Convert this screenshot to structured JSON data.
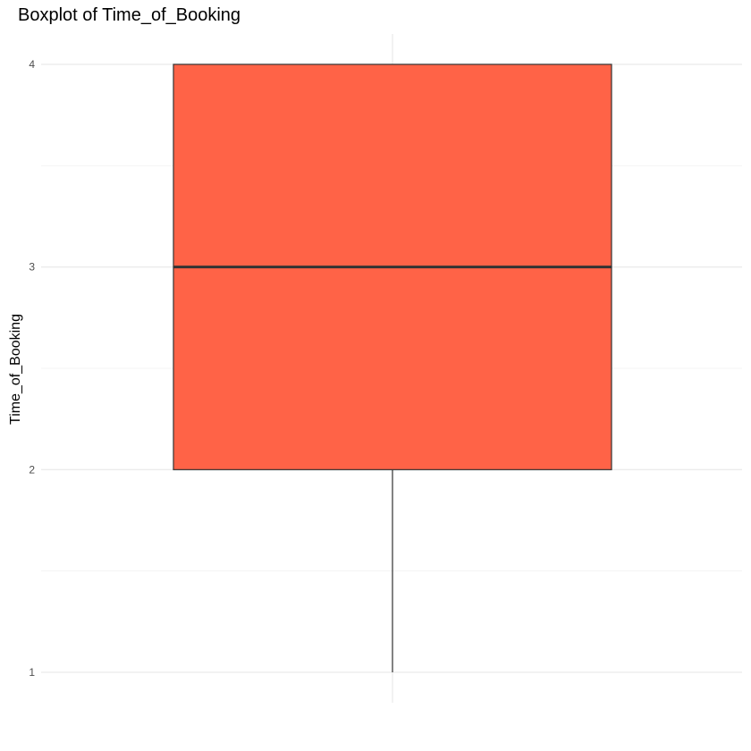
{
  "chart_data": {
    "type": "boxplot",
    "title": "Boxplot of Time_of_Booking",
    "xlabel": "",
    "ylabel": "Time_of_Booking",
    "ylim": [
      0.85,
      4.15
    ],
    "y_ticks": [
      1,
      2,
      3,
      4
    ],
    "y_tick_labels": [
      "1",
      "2",
      "3",
      "4"
    ],
    "y_minor_ticks": [
      1.5,
      2.5,
      3.5
    ],
    "grid": true,
    "legend": "none",
    "box": {
      "min": 1,
      "q1": 2,
      "median": 3,
      "q3": 4,
      "max": 4
    },
    "colors": {
      "box_fill": "#FF6347",
      "box_outline": "#333333",
      "grid_major": "#EBEBEB",
      "grid_minor": "#F2F2F2"
    }
  }
}
